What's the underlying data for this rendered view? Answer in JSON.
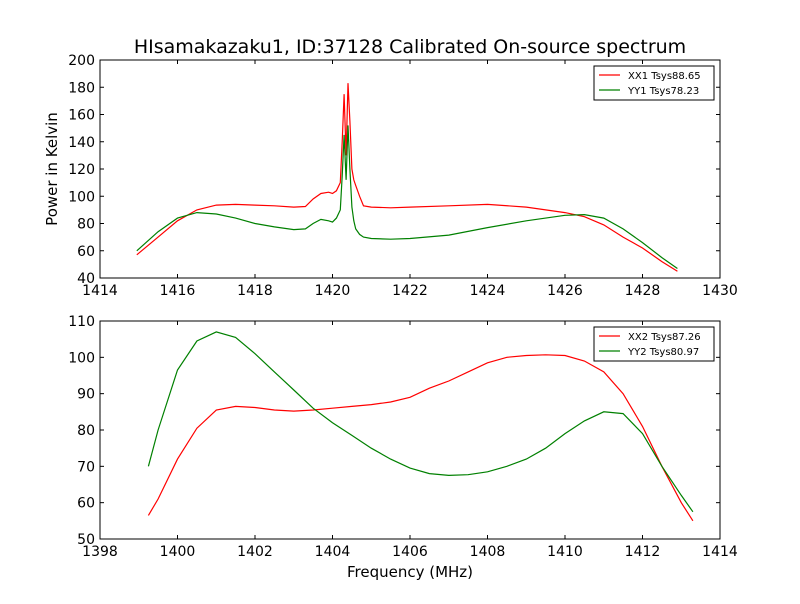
{
  "figure": {
    "title": "HIsamakazaku1, ID:37128 Calibrated On-source spectrum",
    "xlabel": "Frequency (MHz)"
  },
  "chart_data": [
    {
      "type": "line",
      "title": "HIsamakazaku1, ID:37128 Calibrated On-source spectrum",
      "xlabel": "",
      "ylabel": "Power in Kelvin",
      "xlim": [
        1414,
        1430
      ],
      "ylim": [
        40,
        200
      ],
      "xticks": [
        1414,
        1416,
        1418,
        1420,
        1422,
        1424,
        1426,
        1428,
        1430
      ],
      "yticks": [
        40,
        60,
        80,
        100,
        120,
        140,
        160,
        180,
        200
      ],
      "grid": false,
      "legend": "top-right",
      "series": [
        {
          "name": "XX1 Tsys88.65",
          "color": "#ff0000",
          "x": [
            1414.95,
            1415.5,
            1416,
            1416.5,
            1417,
            1417.5,
            1418,
            1418.5,
            1419,
            1419.3,
            1419.5,
            1419.7,
            1419.9,
            1420.0,
            1420.1,
            1420.2,
            1420.25,
            1420.3,
            1420.35,
            1420.4,
            1420.45,
            1420.5,
            1420.55,
            1420.6,
            1420.7,
            1420.8,
            1421,
            1421.5,
            1422,
            1423,
            1424,
            1425,
            1426,
            1426.5,
            1427,
            1427.5,
            1428,
            1428.5,
            1428.9
          ],
          "y": [
            57,
            70,
            82,
            90,
            93.5,
            94,
            93.5,
            93,
            92,
            92.5,
            98,
            102,
            103,
            102,
            104,
            110,
            140,
            175,
            130,
            183,
            155,
            120,
            112,
            108,
            100,
            93,
            92,
            91.5,
            92,
            93,
            94,
            92,
            88,
            85,
            79,
            70,
            62,
            52,
            45
          ]
        },
        {
          "name": "YY1 Tsys78.23",
          "color": "#008000",
          "x": [
            1414.95,
            1415.5,
            1416,
            1416.5,
            1417,
            1417.5,
            1418,
            1418.5,
            1419,
            1419.3,
            1419.5,
            1419.7,
            1419.9,
            1420.0,
            1420.1,
            1420.2,
            1420.25,
            1420.3,
            1420.35,
            1420.4,
            1420.45,
            1420.5,
            1420.55,
            1420.6,
            1420.7,
            1420.8,
            1421,
            1421.5,
            1422,
            1423,
            1424,
            1425,
            1426,
            1426.5,
            1427,
            1427.5,
            1428,
            1428.5,
            1428.9
          ],
          "y": [
            60,
            74,
            84,
            88,
            87,
            84,
            80,
            77.5,
            75.5,
            76,
            80,
            83,
            82,
            81,
            84,
            90,
            115,
            145,
            112,
            152,
            120,
            92,
            82,
            76,
            72,
            70,
            69,
            68.5,
            69,
            71.5,
            77,
            82,
            86,
            86.5,
            84,
            76,
            66,
            55,
            47
          ]
        }
      ]
    },
    {
      "type": "line",
      "title": "",
      "xlabel": "Frequency (MHz)",
      "ylabel": "",
      "xlim": [
        1398,
        1414
      ],
      "ylim": [
        50,
        110
      ],
      "xticks": [
        1398,
        1400,
        1402,
        1404,
        1406,
        1408,
        1410,
        1412,
        1414
      ],
      "yticks": [
        50,
        60,
        70,
        80,
        90,
        100,
        110
      ],
      "grid": false,
      "legend": "top-right",
      "series": [
        {
          "name": "XX2 Tsys87.26",
          "color": "#ff0000",
          "x": [
            1399.25,
            1399.5,
            1400,
            1400.5,
            1401,
            1401.5,
            1402,
            1402.5,
            1403,
            1403.5,
            1404,
            1404.5,
            1405,
            1405.5,
            1406,
            1406.5,
            1407,
            1407.5,
            1408,
            1408.5,
            1409,
            1409.5,
            1410,
            1410.5,
            1411,
            1411.5,
            1412,
            1412.5,
            1413,
            1413.3
          ],
          "y": [
            56.5,
            61,
            72,
            80.5,
            85.5,
            86.5,
            86.2,
            85.5,
            85.2,
            85.5,
            86,
            86.5,
            87,
            87.7,
            89,
            91.5,
            93.5,
            96,
            98.5,
            100,
            100.5,
            100.7,
            100.5,
            99,
            96,
            90,
            81,
            70,
            60,
            55
          ]
        },
        {
          "name": "YY2 Tsys80.97",
          "color": "#008000",
          "x": [
            1399.25,
            1399.5,
            1400,
            1400.5,
            1401,
            1401.5,
            1402,
            1402.5,
            1403,
            1403.5,
            1404,
            1404.5,
            1405,
            1405.5,
            1406,
            1406.5,
            1407,
            1407.5,
            1408,
            1408.5,
            1409,
            1409.5,
            1410,
            1410.5,
            1411,
            1411.5,
            1412,
            1412.5,
            1413,
            1413.3
          ],
          "y": [
            70,
            80,
            96.5,
            104.5,
            107,
            105.5,
            101,
            96,
            91,
            86,
            82,
            78.5,
            75,
            72,
            69.5,
            68,
            67.5,
            67.7,
            68.5,
            70,
            72,
            75,
            79,
            82.5,
            85,
            84.5,
            79,
            70,
            62,
            57.5
          ]
        }
      ]
    }
  ]
}
